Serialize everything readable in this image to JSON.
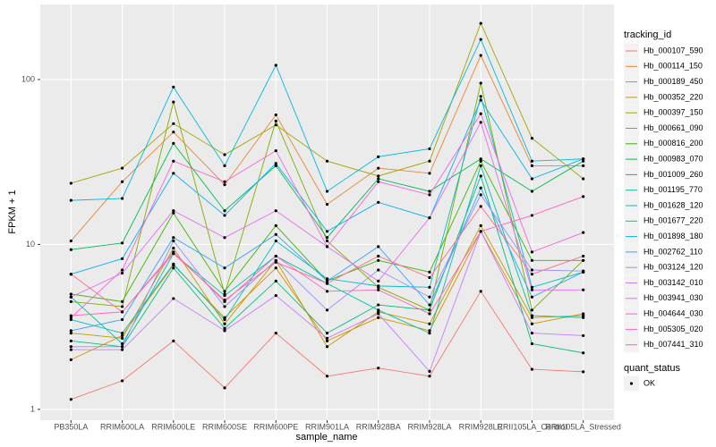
{
  "chart_data": {
    "type": "line",
    "xlabel": "sample_name",
    "ylabel": "FPKM + 1",
    "legend_title": "tracking_id",
    "point_legend": {
      "title": "quant_status",
      "labels": [
        "OK"
      ]
    },
    "log_scale": true,
    "grid": true,
    "ylim": [
      0.86,
      285
    ],
    "yticks": [
      1,
      10,
      100
    ],
    "categories": [
      "PB350LA",
      "RRIM600LA",
      "RRIM600LE",
      "RRIM600SE",
      "RRIM600PE",
      "RRIM901LA",
      "RRIM928BA",
      "RRIM928LA",
      "RRIM928LE",
      "RRII105LA_Control",
      "RRII105LA_Stressed"
    ],
    "series": [
      {
        "name": "Hb_000107_590",
        "color": "#F8766D",
        "values": [
          1.15,
          1.49,
          2.6,
          1.35,
          2.9,
          1.59,
          1.78,
          1.59,
          5.2,
          1.75,
          1.69
        ]
      },
      {
        "name": "Hb_000114_150",
        "color": "#EA8331",
        "values": [
          10.5,
          24,
          48,
          23,
          61,
          17.5,
          29,
          27,
          140,
          30,
          30
        ]
      },
      {
        "name": "Hb_000189_450",
        "color": "#D89000",
        "values": [
          2.0,
          2.8,
          7.5,
          3.6,
          7.2,
          2.6,
          3.6,
          3.0,
          12,
          3.3,
          3.8
        ]
      },
      {
        "name": "Hb_000352_220",
        "color": "#C09B00",
        "values": [
          2.9,
          2.7,
          9.5,
          3.3,
          8.0,
          2.4,
          3.9,
          3.3,
          13,
          3.6,
          3.7
        ]
      },
      {
        "name": "Hb_000397_150",
        "color": "#A3A500",
        "values": [
          23.5,
          29,
          54,
          35,
          53,
          32,
          26,
          32,
          219,
          44,
          25
        ]
      },
      {
        "name": "Hb_000661_090",
        "color": "#7CAE00",
        "values": [
          4.5,
          4.2,
          73,
          5.0,
          56,
          10.5,
          5.5,
          4.0,
          95,
          4.0,
          8.0
        ]
      },
      {
        "name": "Hb_000816_200",
        "color": "#39B600",
        "values": [
          5.0,
          4.5,
          15.5,
          5.2,
          13,
          6.0,
          8.0,
          6.8,
          32,
          8.0,
          8.0
        ]
      },
      {
        "name": "Hb_000983_070",
        "color": "#00BB4E",
        "values": [
          9.3,
          10.2,
          41,
          16,
          30,
          11,
          25,
          21,
          33,
          21,
          32
        ]
      },
      {
        "name": "Hb_001009_260",
        "color": "#00BF7D",
        "values": [
          2.6,
          2.4,
          7.2,
          3.1,
          6.0,
          2.9,
          4.3,
          4.0,
          26,
          2.5,
          2.2
        ]
      },
      {
        "name": "Hb_001195_770",
        "color": "#00C1A3",
        "values": [
          4.8,
          2.5,
          8.8,
          4.9,
          8.5,
          5.8,
          4.0,
          2.9,
          30,
          3.7,
          3.6
        ]
      },
      {
        "name": "Hb_001628_120",
        "color": "#00BFC4",
        "values": [
          3.5,
          2.9,
          7.6,
          3.5,
          10.5,
          6.2,
          5.6,
          5.5,
          79,
          5.5,
          6.8
        ]
      },
      {
        "name": "Hb_001677_220",
        "color": "#00BAE0",
        "values": [
          18.5,
          19,
          90,
          30,
          122,
          21,
          34,
          38,
          175,
          32,
          33
        ]
      },
      {
        "name": "Hb_001898_180",
        "color": "#00B0F6",
        "values": [
          6.6,
          8.2,
          27,
          15,
          31,
          12,
          18,
          14.5,
          75,
          25,
          33
        ]
      },
      {
        "name": "Hb_002762_110",
        "color": "#35A2FF",
        "values": [
          3.0,
          3.5,
          11,
          7.2,
          11.5,
          6.0,
          9.7,
          4.3,
          22,
          4.8,
          6.8
        ]
      },
      {
        "name": "Hb_003124_120",
        "color": "#9590FF",
        "values": [
          2.4,
          2.4,
          10.5,
          4.2,
          8.0,
          4.0,
          7.0,
          4.8,
          20,
          7.0,
          6.9
        ]
      },
      {
        "name": "Hb_003142_010",
        "color": "#C77CFF",
        "values": [
          2.3,
          2.3,
          4.7,
          3.0,
          4.9,
          2.7,
          3.8,
          1.7,
          12,
          2.9,
          2.8
        ]
      },
      {
        "name": "Hb_003941_030",
        "color": "#E76BF3",
        "values": [
          4.8,
          6.7,
          16,
          11,
          16,
          9.7,
          6.0,
          14.5,
          55,
          5.3,
          5.3
        ]
      },
      {
        "name": "Hb_004644_030",
        "color": "#FA62DB",
        "values": [
          3.6,
          7.0,
          32,
          24,
          37,
          9.7,
          24,
          20,
          62,
          9.0,
          11.8
        ]
      },
      {
        "name": "Hb_005305_020",
        "color": "#FF62BC",
        "values": [
          3.7,
          3.9,
          9.0,
          4.5,
          8.5,
          5.2,
          5.3,
          3.8,
          12,
          15,
          19.5
        ]
      },
      {
        "name": "Hb_007441_310",
        "color": "#FF6C91",
        "values": [
          6.6,
          3.9,
          8.8,
          4.6,
          7.8,
          5.8,
          8.5,
          6.3,
          17,
          6.6,
          8.5
        ]
      }
    ]
  }
}
